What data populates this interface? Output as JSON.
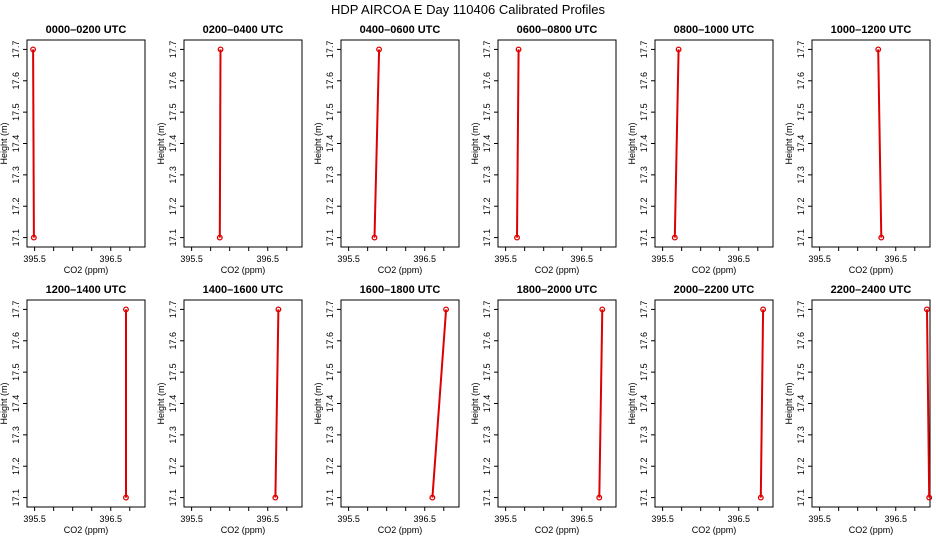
{
  "title": "HDP AIRCOA E  Day 110406  Calibrated Profiles",
  "colors": {
    "series": "#dd0000",
    "axis": "#000000",
    "background": "#ffffff"
  },
  "chart_data": [
    {
      "type": "line",
      "title": "0000–0200 UTC",
      "xlabel": "CO2 (ppm)",
      "ylabel": "Height (m)",
      "xlim": [
        395.4,
        396.95
      ],
      "ylim": [
        17.07,
        17.73
      ],
      "xticks": [
        "395.5",
        "396.5"
      ],
      "xticks_minor": [
        395.5,
        395.75,
        396.0,
        396.25,
        396.5,
        396.75
      ],
      "yticks": [
        "17.1",
        "17.2",
        "17.3",
        "17.4",
        "17.5",
        "17.6",
        "17.7"
      ],
      "grid": false,
      "points": [
        {
          "x": 395.48,
          "y": 17.7
        },
        {
          "x": 395.49,
          "y": 17.1
        }
      ]
    },
    {
      "type": "line",
      "title": "0200–0400 UTC",
      "xlabel": "CO2 (ppm)",
      "ylabel": "Height (m)",
      "xlim": [
        395.4,
        396.95
      ],
      "ylim": [
        17.07,
        17.73
      ],
      "xticks": [
        "395.5",
        "396.5"
      ],
      "xticks_minor": [
        395.5,
        395.75,
        396.0,
        396.25,
        396.5,
        396.75
      ],
      "yticks": [
        "17.1",
        "17.2",
        "17.3",
        "17.4",
        "17.5",
        "17.6",
        "17.7"
      ],
      "grid": false,
      "points": [
        {
          "x": 395.88,
          "y": 17.7
        },
        {
          "x": 395.87,
          "y": 17.1
        }
      ]
    },
    {
      "type": "line",
      "title": "0400–0600 UTC",
      "xlabel": "CO2 (ppm)",
      "ylabel": "Height (m)",
      "xlim": [
        395.4,
        396.95
      ],
      "ylim": [
        17.07,
        17.73
      ],
      "xticks": [
        "395.5",
        "396.5"
      ],
      "xticks_minor": [
        395.5,
        395.75,
        396.0,
        396.25,
        396.5,
        396.75
      ],
      "yticks": [
        "17.1",
        "17.2",
        "17.3",
        "17.4",
        "17.5",
        "17.6",
        "17.7"
      ],
      "grid": false,
      "points": [
        {
          "x": 395.9,
          "y": 17.7
        },
        {
          "x": 395.84,
          "y": 17.1
        }
      ]
    },
    {
      "type": "line",
      "title": "0600–0800 UTC",
      "xlabel": "CO2 (ppm)",
      "ylabel": "Height (m)",
      "xlim": [
        395.4,
        396.95
      ],
      "ylim": [
        17.07,
        17.73
      ],
      "xticks": [
        "395.5",
        "396.5"
      ],
      "xticks_minor": [
        395.5,
        395.75,
        396.0,
        396.25,
        396.5,
        396.75
      ],
      "yticks": [
        "17.1",
        "17.2",
        "17.3",
        "17.4",
        "17.5",
        "17.6",
        "17.7"
      ],
      "grid": false,
      "points": [
        {
          "x": 395.67,
          "y": 17.7
        },
        {
          "x": 395.65,
          "y": 17.1
        }
      ]
    },
    {
      "type": "line",
      "title": "0800–1000 UTC",
      "xlabel": "CO2 (ppm)",
      "ylabel": "Height (m)",
      "xlim": [
        395.4,
        396.95
      ],
      "ylim": [
        17.07,
        17.73
      ],
      "xticks": [
        "395.5",
        "396.5"
      ],
      "xticks_minor": [
        395.5,
        395.75,
        396.0,
        396.25,
        396.5,
        396.75
      ],
      "yticks": [
        "17.1",
        "17.2",
        "17.3",
        "17.4",
        "17.5",
        "17.6",
        "17.7"
      ],
      "grid": false,
      "points": [
        {
          "x": 395.71,
          "y": 17.7
        },
        {
          "x": 395.66,
          "y": 17.1
        }
      ]
    },
    {
      "type": "line",
      "title": "1000–1200 UTC",
      "xlabel": "CO2 (ppm)",
      "ylabel": "Height (m)",
      "xlim": [
        395.4,
        396.95
      ],
      "ylim": [
        17.07,
        17.73
      ],
      "xticks": [
        "395.5",
        "396.5"
      ],
      "xticks_minor": [
        395.5,
        395.75,
        396.0,
        396.25,
        396.5,
        396.75
      ],
      "yticks": [
        "17.1",
        "17.2",
        "17.3",
        "17.4",
        "17.5",
        "17.6",
        "17.7"
      ],
      "grid": false,
      "points": [
        {
          "x": 396.27,
          "y": 17.7
        },
        {
          "x": 396.31,
          "y": 17.1
        }
      ]
    },
    {
      "type": "line",
      "title": "1200–1400 UTC",
      "xlabel": "CO2 (ppm)",
      "ylabel": "Height (m)",
      "xlim": [
        395.4,
        396.95
      ],
      "ylim": [
        17.07,
        17.73
      ],
      "xticks": [
        "395.5",
        "396.5"
      ],
      "xticks_minor": [
        395.5,
        395.75,
        396.0,
        396.25,
        396.5,
        396.75
      ],
      "yticks": [
        "17.1",
        "17.2",
        "17.3",
        "17.4",
        "17.5",
        "17.6",
        "17.7"
      ],
      "grid": false,
      "points": [
        {
          "x": 396.7,
          "y": 17.7
        },
        {
          "x": 396.7,
          "y": 17.1
        }
      ]
    },
    {
      "type": "line",
      "title": "1400–1600 UTC",
      "xlabel": "CO2 (ppm)",
      "ylabel": "Height (m)",
      "xlim": [
        395.4,
        396.95
      ],
      "ylim": [
        17.07,
        17.73
      ],
      "xticks": [
        "395.5",
        "396.5"
      ],
      "xticks_minor": [
        395.5,
        395.75,
        396.0,
        396.25,
        396.5,
        396.75
      ],
      "yticks": [
        "17.1",
        "17.2",
        "17.3",
        "17.4",
        "17.5",
        "17.6",
        "17.7"
      ],
      "grid": false,
      "points": [
        {
          "x": 396.64,
          "y": 17.7
        },
        {
          "x": 396.6,
          "y": 17.1
        }
      ]
    },
    {
      "type": "line",
      "title": "1600–1800 UTC",
      "xlabel": "CO2 (ppm)",
      "ylabel": "Height (m)",
      "xlim": [
        395.4,
        396.95
      ],
      "ylim": [
        17.07,
        17.73
      ],
      "xticks": [
        "395.5",
        "396.5"
      ],
      "xticks_minor": [
        395.5,
        395.75,
        396.0,
        396.25,
        396.5,
        396.75
      ],
      "yticks": [
        "17.1",
        "17.2",
        "17.3",
        "17.4",
        "17.5",
        "17.6",
        "17.7"
      ],
      "grid": false,
      "points": [
        {
          "x": 396.78,
          "y": 17.7
        },
        {
          "x": 396.6,
          "y": 17.1
        }
      ]
    },
    {
      "type": "line",
      "title": "1800–2000 UTC",
      "xlabel": "CO2 (ppm)",
      "ylabel": "Height (m)",
      "xlim": [
        395.4,
        396.95
      ],
      "ylim": [
        17.07,
        17.73
      ],
      "xticks": [
        "395.5",
        "396.5"
      ],
      "xticks_minor": [
        395.5,
        395.75,
        396.0,
        396.25,
        396.5,
        396.75
      ],
      "yticks": [
        "17.1",
        "17.2",
        "17.3",
        "17.4",
        "17.5",
        "17.6",
        "17.7"
      ],
      "grid": false,
      "points": [
        {
          "x": 396.77,
          "y": 17.7
        },
        {
          "x": 396.73,
          "y": 17.1
        }
      ]
    },
    {
      "type": "line",
      "title": "2000–2200 UTC",
      "xlabel": "CO2 (ppm)",
      "ylabel": "Height (m)",
      "xlim": [
        395.4,
        396.95
      ],
      "ylim": [
        17.07,
        17.73
      ],
      "xticks": [
        "395.5",
        "396.5"
      ],
      "xticks_minor": [
        395.5,
        395.75,
        396.0,
        396.25,
        396.5,
        396.75
      ],
      "yticks": [
        "17.1",
        "17.2",
        "17.3",
        "17.4",
        "17.5",
        "17.6",
        "17.7"
      ],
      "grid": false,
      "points": [
        {
          "x": 396.82,
          "y": 17.7
        },
        {
          "x": 396.79,
          "y": 17.1
        }
      ]
    },
    {
      "type": "line",
      "title": "2200–2400 UTC",
      "xlabel": "CO2 (ppm)",
      "ylabel": "Height (m)",
      "xlim": [
        395.4,
        396.95
      ],
      "ylim": [
        17.07,
        17.73
      ],
      "xticks": [
        "395.5",
        "396.5"
      ],
      "xticks_minor": [
        395.5,
        395.75,
        396.0,
        396.25,
        396.5,
        396.75
      ],
      "yticks": [
        "17.1",
        "17.2",
        "17.3",
        "17.4",
        "17.5",
        "17.6",
        "17.7"
      ],
      "grid": false,
      "points": [
        {
          "x": 396.91,
          "y": 17.7
        },
        {
          "x": 396.94,
          "y": 17.1
        }
      ]
    }
  ]
}
